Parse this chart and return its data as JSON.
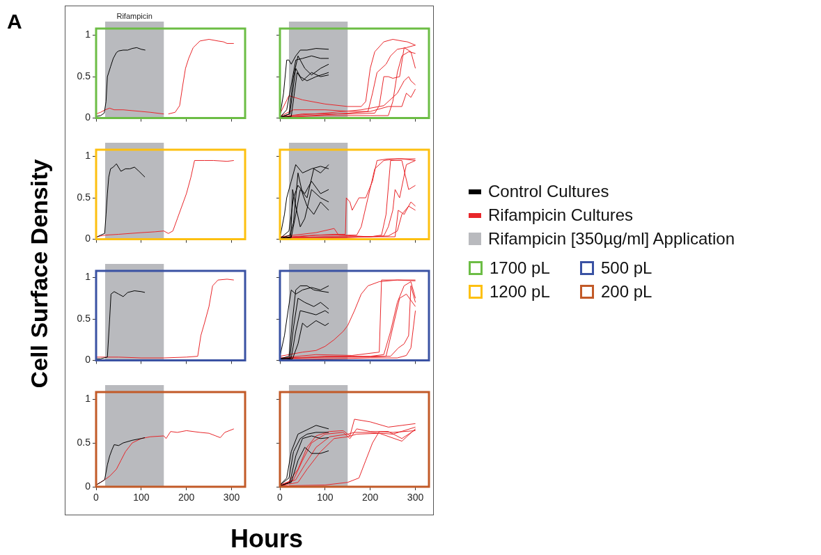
{
  "chart_data": [
    {
      "type": "line",
      "xlim": [
        0,
        330
      ],
      "xticks": [
        0,
        100,
        200,
        300
      ],
      "ylim": [
        0,
        1.08
      ],
      "yticks": [
        0,
        0.5,
        1
      ],
      "tick_labels": "y",
      "bands": [
        {
          "axis": "x",
          "from": 20,
          "to": 150,
          "color": "#b9babe",
          "label": "Rifampicin"
        }
      ],
      "series": [
        {
          "color": "#000000",
          "x": [
            0,
            10,
            18,
            22,
            25,
            28,
            32,
            38,
            45,
            50,
            60,
            70,
            80,
            90,
            100,
            109
          ],
          "values": [
            0.02,
            0.03,
            0.06,
            0.2,
            0.5,
            0.55,
            0.62,
            0.72,
            0.79,
            0.81,
            0.82,
            0.82,
            0.84,
            0.85,
            0.83,
            0.82
          ]
        },
        {
          "color": "#e8262a",
          "x": [
            0,
            10,
            20,
            30,
            40,
            60,
            80,
            100,
            120,
            150,
            155,
            160,
            175,
            185,
            192,
            198,
            205,
            215,
            230,
            250,
            270,
            282,
            290,
            305
          ],
          "values": [
            0.05,
            0.07,
            0.1,
            0.12,
            0.1,
            0.1,
            0.09,
            0.08,
            0.07,
            0.05,
            null,
            0.05,
            0.07,
            0.15,
            0.4,
            0.6,
            0.72,
            0.85,
            0.93,
            0.95,
            0.93,
            0.92,
            0.9,
            0.9
          ]
        }
      ]
    },
    {
      "type": "line",
      "xlim": [
        0,
        330
      ],
      "xticks": [
        0,
        100,
        200,
        300
      ],
      "ylim": [
        0,
        1.08
      ],
      "yticks": [
        0,
        0.5,
        1
      ],
      "tick_labels": false,
      "bands": [
        {
          "axis": "x",
          "from": 20,
          "to": 150,
          "color": "#b9babe"
        }
      ],
      "series": [
        {
          "color": "#000000",
          "x": [
            0,
            8,
            15,
            20,
            25,
            35,
            45,
            60,
            80,
            108
          ],
          "values": [
            0.02,
            0.3,
            0.7,
            0.7,
            0.65,
            0.75,
            0.82,
            0.82,
            0.84,
            0.83
          ]
        },
        {
          "color": "#000000",
          "x": [
            0,
            15,
            25,
            35,
            50,
            70,
            90,
            108
          ],
          "values": [
            0.01,
            0.1,
            0.4,
            0.7,
            0.72,
            0.75,
            0.72,
            0.72
          ]
        },
        {
          "color": "#000000",
          "x": [
            0,
            20,
            30,
            40,
            55,
            70,
            90,
            108
          ],
          "values": [
            0.01,
            0.05,
            0.5,
            0.75,
            0.6,
            0.52,
            0.6,
            0.65
          ]
        },
        {
          "color": "#000000",
          "x": [
            0,
            22,
            28,
            35,
            45,
            60,
            80,
            108
          ],
          "values": [
            0.01,
            0.05,
            0.3,
            0.6,
            0.5,
            0.45,
            0.5,
            0.55
          ]
        },
        {
          "color": "#000000",
          "x": [
            0,
            25,
            32,
            38,
            50,
            70,
            90,
            108
          ],
          "values": [
            0.01,
            0.02,
            0.3,
            0.55,
            0.45,
            0.55,
            0.5,
            0.52
          ]
        },
        {
          "color": "#e8262a",
          "x": [
            0,
            20,
            50,
            100,
            150,
            180,
            190,
            200,
            210,
            230,
            250,
            270,
            282,
            300
          ],
          "values": [
            0.05,
            0.27,
            0.22,
            0.17,
            0.14,
            0.14,
            0.2,
            0.6,
            0.8,
            0.92,
            0.95,
            0.93,
            0.92,
            0.88
          ]
        },
        {
          "color": "#e8262a",
          "x": [
            0,
            30,
            100,
            160,
            195,
            205,
            215,
            225,
            235,
            245,
            260,
            280,
            300
          ],
          "values": [
            0.02,
            0.1,
            0.1,
            0.08,
            0.08,
            0.3,
            0.55,
            0.6,
            0.65,
            0.75,
            0.83,
            0.85,
            0.88
          ]
        },
        {
          "color": "#e8262a",
          "x": [
            0,
            50,
            150,
            210,
            220,
            230,
            240,
            250,
            265,
            275,
            290,
            300
          ],
          "values": [
            0.01,
            0.05,
            0.05,
            0.06,
            0.15,
            0.5,
            0.5,
            0.48,
            0.5,
            0.85,
            0.8,
            0.6
          ]
        },
        {
          "color": "#e8262a",
          "x": [
            0,
            100,
            200,
            240,
            250,
            260,
            270,
            285,
            300
          ],
          "values": [
            0.01,
            0.03,
            0.03,
            0.03,
            0.2,
            0.55,
            0.75,
            0.8,
            0.78
          ]
        },
        {
          "color": "#e8262a",
          "x": [
            0,
            100,
            200,
            240,
            270,
            280,
            290,
            300
          ],
          "values": [
            0.01,
            0.04,
            0.08,
            0.14,
            0.14,
            0.3,
            0.25,
            0.35
          ]
        },
        {
          "color": "#e8262a",
          "x": [
            0,
            100,
            180,
            230,
            260,
            275,
            285,
            290,
            300
          ],
          "values": [
            0.02,
            0.06,
            0.1,
            0.15,
            0.3,
            0.45,
            0.5,
            0.45,
            0.4
          ]
        }
      ]
    },
    {
      "type": "line",
      "xlim": [
        0,
        330
      ],
      "xticks": [
        0,
        100,
        200,
        300
      ],
      "ylim": [
        0,
        1.08
      ],
      "yticks": [
        0,
        0.5,
        1
      ],
      "tick_labels": "y",
      "bands": [
        {
          "axis": "x",
          "from": 20,
          "to": 150,
          "color": "#b9babe"
        }
      ],
      "series": [
        {
          "color": "#000000",
          "x": [
            0,
            10,
            19,
            22,
            25,
            28,
            32,
            38,
            45,
            55,
            65,
            75,
            85,
            95,
            108
          ],
          "values": [
            0.02,
            0.05,
            0.07,
            0.3,
            0.55,
            0.75,
            0.85,
            0.87,
            0.91,
            0.82,
            0.85,
            0.85,
            0.87,
            0.82,
            0.75
          ]
        },
        {
          "color": "#e8262a",
          "x": [
            0,
            20,
            50,
            100,
            130,
            150,
            160,
            170,
            180,
            190,
            200,
            210,
            218,
            240,
            260,
            290,
            305
          ],
          "values": [
            0.03,
            0.05,
            0.06,
            0.08,
            0.09,
            0.1,
            0.07,
            0.1,
            0.25,
            0.4,
            0.55,
            0.75,
            0.95,
            0.95,
            0.95,
            0.94,
            0.95
          ]
        }
      ]
    },
    {
      "type": "line",
      "xlim": [
        0,
        330
      ],
      "xticks": [
        0,
        100,
        200,
        300
      ],
      "ylim": [
        0,
        1.08
      ],
      "yticks": [
        0,
        0.5,
        1
      ],
      "tick_labels": false,
      "bands": [
        {
          "axis": "x",
          "from": 20,
          "to": 150,
          "color": "#b9babe"
        }
      ],
      "series": [
        {
          "color": "#000000",
          "x": [
            0,
            10,
            15,
            25,
            35,
            50,
            70,
            90,
            108
          ],
          "values": [
            0.02,
            0.3,
            0.5,
            0.7,
            0.9,
            0.8,
            0.85,
            0.88,
            0.85
          ]
        },
        {
          "color": "#000000",
          "x": [
            0,
            20,
            30,
            40,
            55,
            70,
            90,
            108
          ],
          "values": [
            0.01,
            0.1,
            0.5,
            0.65,
            0.55,
            0.7,
            0.55,
            0.6
          ]
        },
        {
          "color": "#000000",
          "x": [
            0,
            22,
            30,
            40,
            50,
            60,
            75,
            90,
            108
          ],
          "values": [
            0.01,
            0.05,
            0.2,
            0.8,
            0.55,
            0.4,
            0.3,
            0.45,
            0.35
          ]
        },
        {
          "color": "#000000",
          "x": [
            0,
            24,
            28,
            35,
            45,
            55,
            70,
            90,
            108
          ],
          "values": [
            0.01,
            0.03,
            0.6,
            0.4,
            0.15,
            0.25,
            0.6,
            0.5,
            0.45
          ]
        },
        {
          "color": "#000000",
          "x": [
            0,
            25,
            35,
            45,
            60,
            75,
            90,
            108
          ],
          "values": [
            0.01,
            0.02,
            0.3,
            0.6,
            0.5,
            0.85,
            0.8,
            0.9
          ]
        },
        {
          "color": "#e8262a",
          "x": [
            0,
            50,
            120,
            145,
            147,
            155,
            160,
            175,
            190,
            205,
            215,
            240,
            270,
            300
          ],
          "values": [
            0.02,
            0.04,
            0.06,
            0.06,
            0.5,
            0.45,
            0.35,
            0.5,
            0.5,
            0.7,
            0.95,
            0.97,
            0.97,
            0.95
          ]
        },
        {
          "color": "#e8262a",
          "x": [
            0,
            80,
            150,
            170,
            180,
            195,
            210,
            230,
            260,
            300
          ],
          "values": [
            0.01,
            0.05,
            0.05,
            0.05,
            0.15,
            0.5,
            0.85,
            0.95,
            0.97,
            0.97
          ]
        },
        {
          "color": "#e8262a",
          "x": [
            0,
            100,
            200,
            225,
            235,
            245,
            270,
            285,
            300
          ],
          "values": [
            0.01,
            0.03,
            0.03,
            0.05,
            0.3,
            0.95,
            0.95,
            0.6,
            0.65
          ]
        },
        {
          "color": "#e8262a",
          "x": [
            0,
            150,
            230,
            240,
            250,
            255,
            265,
            280,
            300
          ],
          "values": [
            0.01,
            0.02,
            0.04,
            0.15,
            0.35,
            0.6,
            0.5,
            0.9,
            0.95
          ]
        },
        {
          "color": "#e8262a",
          "x": [
            0,
            100,
            200,
            240,
            260,
            270,
            285,
            300
          ],
          "values": [
            0.02,
            0.03,
            0.03,
            0.04,
            0.1,
            0.3,
            0.4,
            0.35
          ]
        },
        {
          "color": "#e8262a",
          "x": [
            0,
            80,
            120,
            130,
            200,
            255,
            262,
            275,
            290,
            300
          ],
          "values": [
            0.03,
            0.08,
            0.13,
            0.05,
            0.03,
            0.03,
            0.35,
            0.3,
            0.45,
            0.4
          ]
        }
      ]
    },
    {
      "type": "line",
      "xlim": [
        0,
        330
      ],
      "xticks": [
        0,
        100,
        200,
        300
      ],
      "ylim": [
        0,
        1.08
      ],
      "yticks": [
        0,
        0.5,
        1
      ],
      "tick_labels": "y",
      "bands": [
        {
          "axis": "x",
          "from": 20,
          "to": 150,
          "color": "#b9babe"
        }
      ],
      "series": [
        {
          "color": "#000000",
          "x": [
            0,
            10,
            25,
            30,
            33,
            40,
            50,
            60,
            70,
            85,
            100,
            108
          ],
          "values": [
            0.02,
            0.02,
            0.04,
            0.5,
            0.8,
            0.83,
            0.8,
            0.77,
            0.82,
            0.84,
            0.83,
            0.82
          ]
        },
        {
          "color": "#e8262a",
          "x": [
            0,
            50,
            100,
            150,
            200,
            225,
            232,
            240,
            250,
            258,
            270,
            290,
            305
          ],
          "values": [
            0.04,
            0.04,
            0.03,
            0.03,
            0.04,
            0.05,
            0.3,
            0.45,
            0.65,
            0.9,
            0.97,
            0.98,
            0.97
          ]
        }
      ]
    },
    {
      "type": "line",
      "xlim": [
        0,
        330
      ],
      "xticks": [
        0,
        100,
        200,
        300
      ],
      "ylim": [
        0,
        1.08
      ],
      "yticks": [
        0,
        0.5,
        1
      ],
      "tick_labels": false,
      "bands": [
        {
          "axis": "x",
          "from": 20,
          "to": 150,
          "color": "#b9babe"
        }
      ],
      "series": [
        {
          "color": "#000000",
          "x": [
            0,
            10,
            18,
            25,
            35,
            50,
            70,
            90,
            108
          ],
          "values": [
            0.05,
            0.3,
            0.6,
            0.85,
            0.8,
            0.85,
            0.88,
            0.85,
            0.9
          ]
        },
        {
          "color": "#000000",
          "x": [
            0,
            20,
            28,
            35,
            45,
            60,
            75,
            108
          ],
          "values": [
            0.02,
            0.05,
            0.5,
            0.85,
            0.9,
            0.9,
            0.85,
            0.82
          ]
        },
        {
          "color": "#000000",
          "x": [
            0,
            22,
            30,
            40,
            55,
            75,
            90,
            108
          ],
          "values": [
            0.02,
            0.03,
            0.4,
            0.75,
            0.7,
            0.65,
            0.7,
            0.62
          ]
        },
        {
          "color": "#000000",
          "x": [
            0,
            25,
            35,
            45,
            60,
            80,
            100,
            108
          ],
          "values": [
            0.02,
            0.03,
            0.35,
            0.6,
            0.58,
            0.55,
            0.6,
            0.57
          ]
        },
        {
          "color": "#000000",
          "x": [
            0,
            28,
            40,
            50,
            60,
            80,
            100,
            108
          ],
          "values": [
            0.01,
            0.02,
            0.2,
            0.45,
            0.4,
            0.48,
            0.42,
            0.45
          ]
        },
        {
          "color": "#e8262a",
          "x": [
            0,
            50,
            80,
            100,
            120,
            140,
            150,
            165,
            180,
            195,
            220,
            260,
            300
          ],
          "values": [
            0.05,
            0.1,
            0.12,
            0.17,
            0.25,
            0.35,
            0.42,
            0.6,
            0.8,
            0.9,
            0.95,
            0.97,
            0.97
          ]
        },
        {
          "color": "#e8262a",
          "x": [
            0,
            80,
            160,
            220,
            225,
            260,
            300
          ],
          "values": [
            0.03,
            0.07,
            0.06,
            0.1,
            0.97,
            0.97,
            0.96
          ]
        },
        {
          "color": "#e8262a",
          "x": [
            0,
            100,
            160,
            200,
            230,
            245,
            260,
            275,
            290,
            300
          ],
          "values": [
            0.02,
            0.05,
            0.05,
            0.05,
            0.07,
            0.35,
            0.7,
            0.9,
            0.95,
            0.75
          ]
        },
        {
          "color": "#e8262a",
          "x": [
            0,
            100,
            200,
            235,
            250,
            265,
            280,
            300
          ],
          "values": [
            0.02,
            0.04,
            0.04,
            0.05,
            0.4,
            0.75,
            0.8,
            0.65
          ]
        },
        {
          "color": "#e8262a",
          "x": [
            0,
            100,
            200,
            245,
            262,
            275,
            285,
            290,
            300
          ],
          "values": [
            0.03,
            0.04,
            0.05,
            0.05,
            0.15,
            0.2,
            0.3,
            0.9,
            0.7
          ]
        },
        {
          "color": "#e8262a",
          "x": [
            0,
            120,
            200,
            260,
            280,
            290,
            300
          ],
          "values": [
            0.01,
            0.02,
            0.03,
            0.03,
            0.06,
            0.15,
            0.6
          ]
        }
      ]
    },
    {
      "type": "line",
      "xlim": [
        0,
        330
      ],
      "xticks": [
        0,
        100,
        200,
        300
      ],
      "ylim": [
        0,
        1.08
      ],
      "yticks": [
        0,
        0.5,
        1
      ],
      "bands": [
        {
          "axis": "x",
          "from": 20,
          "to": 150,
          "color": "#b9babe"
        }
      ],
      "series": [
        {
          "color": "#000000",
          "x": [
            0,
            10,
            19,
            25,
            30,
            35,
            40,
            50,
            60,
            80,
            100,
            108
          ],
          "values": [
            0.02,
            0.05,
            0.08,
            0.25,
            0.35,
            0.42,
            0.48,
            0.47,
            0.5,
            0.53,
            0.55,
            0.56
          ]
        },
        {
          "color": "#e8262a",
          "x": [
            0,
            19,
            30,
            45,
            55,
            65,
            80,
            100,
            120,
            150,
            155,
            165,
            180,
            200,
            230,
            250,
            265,
            275,
            285,
            305
          ],
          "values": [
            0.02,
            0.08,
            0.12,
            0.2,
            0.3,
            0.4,
            0.5,
            0.55,
            0.57,
            0.58,
            0.55,
            0.63,
            0.62,
            0.64,
            0.62,
            0.61,
            0.58,
            0.56,
            0.62,
            0.66
          ]
        }
      ]
    },
    {
      "type": "line",
      "xlim": [
        0,
        330
      ],
      "xticks": [
        0,
        100,
        200,
        300
      ],
      "ylim": [
        0,
        1.08
      ],
      "yticks": [
        0,
        0.5,
        1
      ],
      "tick_labels": "x",
      "bands": [
        {
          "axis": "x",
          "from": 20,
          "to": 150,
          "color": "#b9babe"
        }
      ],
      "series": [
        {
          "color": "#000000",
          "x": [
            0,
            15,
            25,
            40,
            60,
            80,
            108
          ],
          "values": [
            0.02,
            0.1,
            0.4,
            0.6,
            0.65,
            0.7,
            0.66
          ]
        },
        {
          "color": "#000000",
          "x": [
            0,
            20,
            30,
            45,
            60,
            80,
            108
          ],
          "values": [
            0.02,
            0.1,
            0.4,
            0.55,
            0.6,
            0.62,
            0.62
          ]
        },
        {
          "color": "#000000",
          "x": [
            0,
            22,
            35,
            50,
            70,
            90,
            108
          ],
          "values": [
            0.01,
            0.05,
            0.35,
            0.55,
            0.58,
            0.55,
            0.56
          ]
        },
        {
          "color": "#000000",
          "x": [
            0,
            25,
            40,
            55,
            70,
            90,
            108
          ],
          "values": [
            0.01,
            0.05,
            0.3,
            0.45,
            0.38,
            0.38,
            0.41
          ]
        },
        {
          "color": "#e8262a",
          "x": [
            0,
            20,
            40,
            60,
            80,
            110,
            140,
            155,
            165,
            200,
            240,
            270,
            300
          ],
          "values": [
            0.02,
            0.06,
            0.2,
            0.45,
            0.58,
            0.63,
            0.64,
            0.58,
            0.77,
            0.74,
            0.68,
            0.7,
            0.72
          ]
        },
        {
          "color": "#e8262a",
          "x": [
            0,
            30,
            50,
            70,
            100,
            140,
            155,
            170,
            200,
            240,
            270,
            300
          ],
          "values": [
            0.01,
            0.08,
            0.3,
            0.5,
            0.6,
            0.62,
            0.55,
            0.66,
            0.63,
            0.63,
            0.55,
            0.65
          ]
        },
        {
          "color": "#e8262a",
          "x": [
            0,
            35,
            55,
            80,
            110,
            150,
            165,
            200,
            250,
            300
          ],
          "values": [
            0.01,
            0.08,
            0.25,
            0.45,
            0.57,
            0.6,
            0.62,
            0.62,
            0.6,
            0.68
          ]
        },
        {
          "color": "#e8262a",
          "x": [
            0,
            40,
            60,
            90,
            120,
            150,
            170,
            220,
            270,
            300
          ],
          "values": [
            0.01,
            0.05,
            0.2,
            0.4,
            0.55,
            0.57,
            0.6,
            0.61,
            0.52,
            0.66
          ]
        },
        {
          "color": "#e8262a",
          "x": [
            0,
            100,
            150,
            175,
            190,
            205,
            220,
            250,
            300
          ],
          "values": [
            0.01,
            0.02,
            0.05,
            0.1,
            0.3,
            0.5,
            0.63,
            0.62,
            0.64
          ]
        }
      ]
    },
    {
      "type": "other",
      "title": "A",
      "xlabel": "Hours",
      "ylabel": "Cell Surface Density",
      "legend": "right",
      "series": [
        {
          "name": "Control Cultures",
          "color": "#000000"
        },
        {
          "name": "Rifampicin Cultures",
          "color": "#e8262a"
        },
        {
          "name": "Rifampicin [350µg/ml] Application",
          "color": "#b9babe"
        },
        {
          "name": "1700 pL",
          "color": "#6cbd45"
        },
        {
          "name": "1200 pL",
          "color": "#fdc010"
        },
        {
          "name": "500 pL",
          "color": "#3a52a3"
        },
        {
          "name": "200 pL",
          "color": "#c25a28"
        }
      ]
    }
  ]
}
